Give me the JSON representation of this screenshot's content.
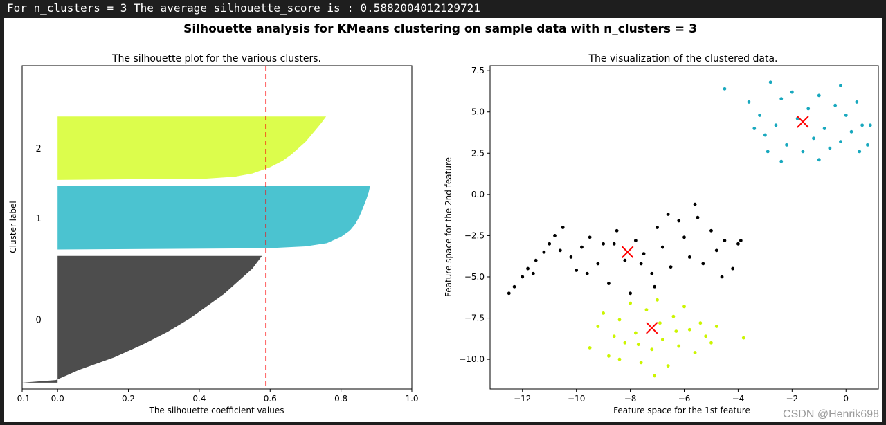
{
  "console": {
    "output_line": "For n_clusters = 3 The average silhouette_score is : 0.5882004012129721"
  },
  "figure": {
    "suptitle": "Silhouette analysis for KMeans clustering on sample data with n_clusters = 3"
  },
  "watermark": "CSDN @Henrik698",
  "chart_data": [
    {
      "type": "area",
      "title": "The silhouette plot for the various clusters.",
      "xlabel": "The silhouette coefficient values",
      "ylabel": "Cluster label",
      "xlim": [
        -0.1,
        1.0
      ],
      "ylim": [
        0,
        510
      ],
      "xticks": [
        "-0.1",
        "0.0",
        "0.2",
        "0.4",
        "0.6",
        "0.8",
        "1.0"
      ],
      "xtick_values": [
        -0.1,
        0.0,
        0.2,
        0.4,
        0.6,
        0.8,
        1.0
      ],
      "average_silhouette_score": 0.5882004012129721,
      "average_line_color": "#ff0000",
      "clusters": [
        {
          "label": "0",
          "color": "#4d4d4d",
          "y_lower": 10,
          "size": 200,
          "profile": [
            [
              0.0,
              -0.1
            ],
            [
              0.02,
              -0.005
            ],
            [
              0.05,
              0.02
            ],
            [
              0.1,
              0.06
            ],
            [
              0.15,
              0.11
            ],
            [
              0.2,
              0.16
            ],
            [
              0.3,
              0.24
            ],
            [
              0.4,
              0.31
            ],
            [
              0.5,
              0.37
            ],
            [
              0.6,
              0.42
            ],
            [
              0.7,
              0.47
            ],
            [
              0.8,
              0.51
            ],
            [
              0.9,
              0.55
            ],
            [
              1.0,
              0.577
            ]
          ]
        },
        {
          "label": "1",
          "color": "#4bc3d0",
          "y_lower": 220,
          "size": 100,
          "profile": [
            [
              0.0,
              0.0
            ],
            [
              0.02,
              0.59
            ],
            [
              0.05,
              0.7
            ],
            [
              0.1,
              0.76
            ],
            [
              0.2,
              0.8
            ],
            [
              0.3,
              0.825
            ],
            [
              0.4,
              0.84
            ],
            [
              0.5,
              0.85
            ],
            [
              0.6,
              0.858
            ],
            [
              0.7,
              0.865
            ],
            [
              0.8,
              0.872
            ],
            [
              0.9,
              0.878
            ],
            [
              1.0,
              0.882
            ]
          ]
        },
        {
          "label": "2",
          "color": "#dcfd4c",
          "y_lower": 330,
          "size": 100,
          "profile": [
            [
              0.0,
              0.0
            ],
            [
              0.02,
              0.42
            ],
            [
              0.05,
              0.5
            ],
            [
              0.1,
              0.55
            ],
            [
              0.2,
              0.6
            ],
            [
              0.3,
              0.635
            ],
            [
              0.4,
              0.66
            ],
            [
              0.5,
              0.68
            ],
            [
              0.6,
              0.7
            ],
            [
              0.7,
              0.715
            ],
            [
              0.8,
              0.73
            ],
            [
              0.9,
              0.745
            ],
            [
              1.0,
              0.758
            ]
          ]
        }
      ]
    },
    {
      "type": "scatter",
      "title": "The visualization of the clustered data.",
      "xlabel": "Feature space for the 1st feature",
      "ylabel": "Feature space for the 2nd feature",
      "xlim": [
        -13.2,
        1.2
      ],
      "ylim": [
        -11.8,
        7.8
      ],
      "xticks": [
        "−12",
        "−10",
        "−8",
        "−6",
        "−4",
        "−2",
        "0"
      ],
      "xtick_values": [
        -12,
        -10,
        -8,
        -6,
        -4,
        -2,
        0
      ],
      "yticks": [
        "7.5",
        "5.0",
        "2.5",
        "0.0",
        "−2.5",
        "−5.0",
        "−7.5",
        "−10.0"
      ],
      "ytick_values": [
        7.5,
        5.0,
        2.5,
        0.0,
        -2.5,
        -5.0,
        -7.5,
        -10.0
      ],
      "center_marker_color": "#ff0000",
      "clusters": [
        {
          "color": "#000000",
          "center": [
            -8.1,
            -3.5
          ],
          "points": [
            [
              -12.5,
              -6.0
            ],
            [
              -12.3,
              -5.6
            ],
            [
              -12.0,
              -5.0
            ],
            [
              -11.8,
              -4.5
            ],
            [
              -11.5,
              -4.0
            ],
            [
              -11.2,
              -3.5
            ],
            [
              -11.0,
              -3.0
            ],
            [
              -10.8,
              -2.5
            ],
            [
              -10.5,
              -2.0
            ],
            [
              -10.2,
              -3.8
            ],
            [
              -10.0,
              -4.6
            ],
            [
              -9.8,
              -3.2
            ],
            [
              -9.5,
              -2.6
            ],
            [
              -9.2,
              -4.2
            ],
            [
              -9.0,
              -3.0
            ],
            [
              -8.8,
              -5.4
            ],
            [
              -8.5,
              -2.2
            ],
            [
              -8.2,
              -4.0
            ],
            [
              -8.0,
              -6.0
            ],
            [
              -7.8,
              -2.8
            ],
            [
              -7.5,
              -3.6
            ],
            [
              -7.2,
              -4.8
            ],
            [
              -7.0,
              -2.0
            ],
            [
              -6.8,
              -3.2
            ],
            [
              -6.5,
              -4.4
            ],
            [
              -6.2,
              -1.6
            ],
            [
              -6.0,
              -2.6
            ],
            [
              -5.8,
              -3.8
            ],
            [
              -5.5,
              -1.4
            ],
            [
              -5.3,
              -4.2
            ],
            [
              -5.0,
              -2.2
            ],
            [
              -4.8,
              -3.4
            ],
            [
              -4.5,
              -2.8
            ],
            [
              -4.2,
              -4.5
            ],
            [
              -4.0,
              -3.0
            ],
            [
              -3.9,
              -2.8
            ],
            [
              -11.6,
              -4.8
            ],
            [
              -10.6,
              -3.4
            ],
            [
              -9.6,
              -4.8
            ],
            [
              -8.6,
              -3.0
            ],
            [
              -7.6,
              -4.2
            ],
            [
              -6.6,
              -1.2
            ],
            [
              -5.6,
              -0.6
            ],
            [
              -4.6,
              -5.0
            ],
            [
              -7.1,
              -5.6
            ]
          ]
        },
        {
          "color": "#18a8be",
          "center": [
            -1.6,
            4.4
          ],
          "points": [
            [
              -4.5,
              6.4
            ],
            [
              -3.6,
              5.6
            ],
            [
              -3.2,
              4.8
            ],
            [
              -3.0,
              3.6
            ],
            [
              -2.8,
              6.8
            ],
            [
              -2.6,
              4.2
            ],
            [
              -2.4,
              5.8
            ],
            [
              -2.2,
              3.0
            ],
            [
              -2.0,
              6.2
            ],
            [
              -1.8,
              4.6
            ],
            [
              -1.6,
              2.6
            ],
            [
              -1.4,
              5.2
            ],
            [
              -1.2,
              3.4
            ],
            [
              -1.0,
              6.0
            ],
            [
              -0.8,
              4.0
            ],
            [
              -0.6,
              2.8
            ],
            [
              -0.4,
              5.4
            ],
            [
              -0.2,
              3.2
            ],
            [
              0.0,
              4.8
            ],
            [
              0.2,
              3.8
            ],
            [
              0.4,
              5.6
            ],
            [
              0.5,
              2.6
            ],
            [
              0.6,
              4.2
            ],
            [
              0.8,
              3.0
            ],
            [
              0.9,
              4.2
            ],
            [
              -2.4,
              2.0
            ],
            [
              -1.0,
              2.1
            ],
            [
              -3.4,
              4.0
            ],
            [
              -2.9,
              2.6
            ],
            [
              -0.2,
              6.6
            ]
          ]
        },
        {
          "color": "#ccf500",
          "center": [
            -7.2,
            -8.1
          ],
          "points": [
            [
              -9.5,
              -9.3
            ],
            [
              -9.2,
              -8.0
            ],
            [
              -9.0,
              -7.2
            ],
            [
              -8.8,
              -9.8
            ],
            [
              -8.6,
              -8.6
            ],
            [
              -8.4,
              -7.6
            ],
            [
              -8.2,
              -9.0
            ],
            [
              -8.0,
              -6.6
            ],
            [
              -7.8,
              -8.4
            ],
            [
              -7.6,
              -10.2
            ],
            [
              -7.4,
              -7.0
            ],
            [
              -7.2,
              -9.4
            ],
            [
              -7.0,
              -6.4
            ],
            [
              -6.8,
              -8.8
            ],
            [
              -6.6,
              -10.4
            ],
            [
              -6.4,
              -7.4
            ],
            [
              -6.2,
              -9.2
            ],
            [
              -6.0,
              -6.8
            ],
            [
              -5.8,
              -8.2
            ],
            [
              -5.6,
              -9.6
            ],
            [
              -5.4,
              -7.8
            ],
            [
              -5.2,
              -8.6
            ],
            [
              -5.0,
              -9.0
            ],
            [
              -4.8,
              -8.0
            ],
            [
              -7.1,
              -11.0
            ],
            [
              -3.8,
              -8.7
            ],
            [
              -6.9,
              -7.8
            ],
            [
              -7.7,
              -9.1
            ],
            [
              -6.3,
              -8.3
            ],
            [
              -8.4,
              -10.0
            ]
          ]
        }
      ]
    }
  ]
}
